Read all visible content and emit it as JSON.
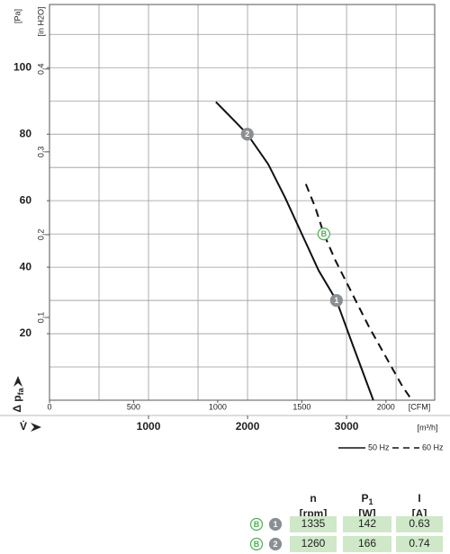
{
  "chart_data": {
    "type": "line",
    "y_label": "Δ p",
    "y_label_sub": "fa",
    "y_unit": "[Pa]",
    "y2_unit": "[in H2O]",
    "x_label": "V̇",
    "x_unit": "[CFM]",
    "x2_unit": "[m³/h]",
    "xlim": [
      0,
      2290
    ],
    "xticks": [
      0,
      500,
      1000,
      1500,
      2000
    ],
    "x2lim": [
      0,
      3890
    ],
    "x2ticks": [
      1000,
      2000,
      3000
    ],
    "x2grid": [
      500,
      1000,
      1500,
      2000,
      2500,
      3000,
      3500
    ],
    "ylim": [
      0,
      119
    ],
    "yticks": [
      20,
      40,
      60,
      80,
      100
    ],
    "ygrid": [
      10,
      20,
      30,
      40,
      50,
      60,
      70,
      80,
      90,
      100,
      110
    ],
    "y2lim": [
      0,
      0.478
    ],
    "y2ticks": [
      {
        "value": 0.1,
        "label": "0,1"
      },
      {
        "value": 0.2,
        "label": "0,2"
      },
      {
        "value": 0.3,
        "label": "0,3"
      },
      {
        "value": 0.4,
        "label": "0,4"
      }
    ],
    "series": [
      {
        "name": "50 Hz",
        "color": "#111111",
        "style": "solid",
        "x": [
          989,
          1100,
          1176,
          1300,
          1400,
          1500,
          1600,
          1706,
          1800,
          1925
        ],
        "values": [
          89.7,
          84,
          80,
          71,
          61,
          50,
          39,
          30,
          17,
          0
        ]
      },
      {
        "name": "60 Hz",
        "color": "#111111",
        "style": "dashed",
        "x": [
          1524,
          1580,
          1631,
          1700,
          1800,
          1900,
          2000,
          2100,
          2155
        ],
        "values": [
          65,
          58,
          50,
          42,
          32,
          22,
          13,
          4,
          0
        ]
      }
    ],
    "operating_points": [
      {
        "label": "1",
        "x": 1706,
        "value": 30,
        "style": "grey"
      },
      {
        "label": "2",
        "x": 1176,
        "value": 80,
        "style": "grey"
      },
      {
        "label": "B",
        "x": 1631,
        "value": 50,
        "style": "green"
      }
    ]
  },
  "table": {
    "headers": [
      {
        "name": "n",
        "unit": "[rpm]"
      },
      {
        "name": "P",
        "sub": "1",
        "unit": "[W]"
      },
      {
        "name": "I",
        "unit": "[A]"
      }
    ],
    "rows": [
      {
        "badges": [
          "B",
          "1"
        ],
        "cells": [
          1335,
          142,
          0.63
        ]
      },
      {
        "badges": [
          "B",
          "2"
        ],
        "cells": [
          1260,
          166,
          0.74
        ]
      }
    ]
  }
}
